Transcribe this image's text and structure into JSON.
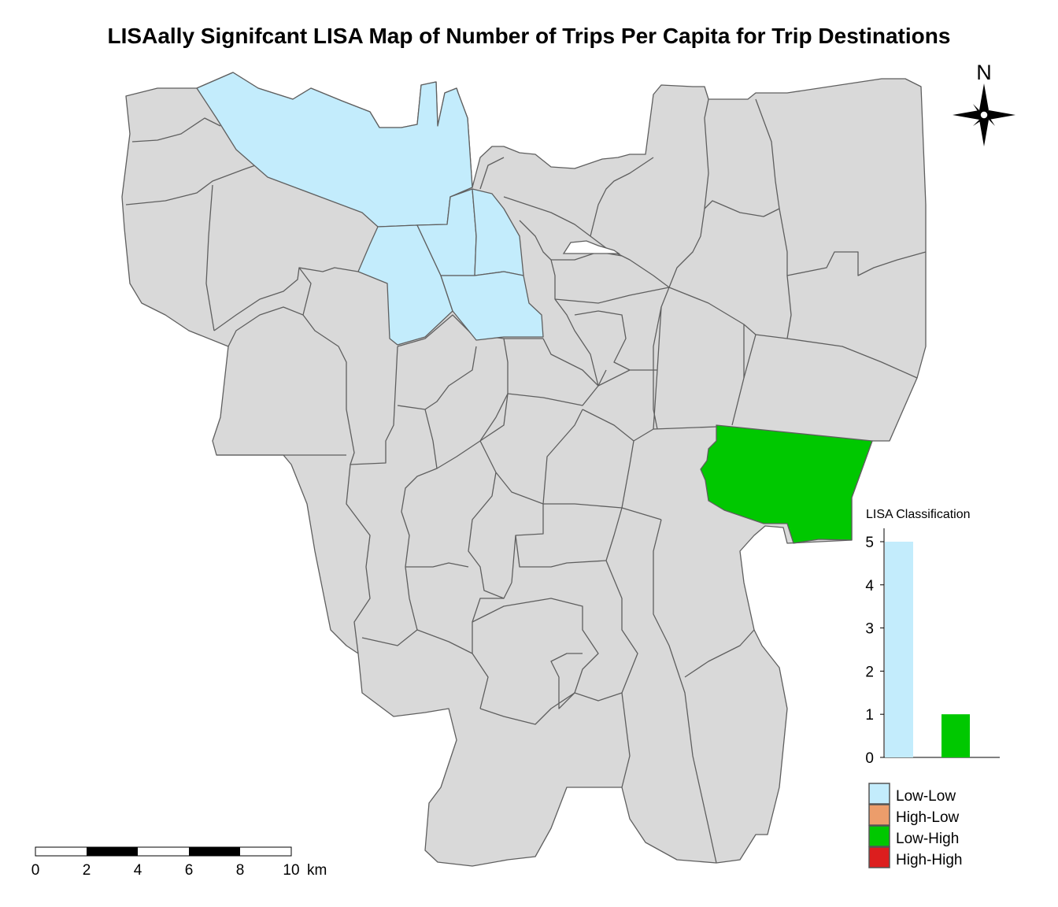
{
  "title": "LISAally Signifcant LISA Map of Number of Trips Per Capita for Trip Destinations",
  "north_arrow": {
    "label": "N",
    "icon": "compass-rose-icon"
  },
  "colors": {
    "not_significant": "#d9d9d9",
    "border": "#5f5f5f",
    "Low-Low": "#c3ecfc",
    "High-Low": "#ec9d6b",
    "Low-High": "#00c800",
    "High-High": "#dc1e1e"
  },
  "legend": {
    "items": [
      {
        "label": "Low-Low",
        "color": "#c3ecfc"
      },
      {
        "label": "High-Low",
        "color": "#ec9d6b"
      },
      {
        "label": "Low-High",
        "color": "#00c800"
      },
      {
        "label": "High-High",
        "color": "#dc1e1e"
      }
    ]
  },
  "chart_data": {
    "type": "bar",
    "title": "LISA Classification",
    "categories": [
      "Low-Low",
      "High-Low",
      "Low-High",
      "High-High"
    ],
    "values": [
      5,
      0,
      1,
      0
    ],
    "colors": [
      "#c3ecfc",
      "#ec9d6b",
      "#00c800",
      "#dc1e1e"
    ],
    "yticks": [
      "0",
      "1",
      "2",
      "3",
      "4",
      "5"
    ],
    "ylim": [
      0,
      5
    ]
  },
  "scale_bar": {
    "ticks": [
      "0",
      "2",
      "4",
      "6",
      "8",
      "10"
    ],
    "unit": "km"
  },
  "districts": [
    {
      "name": "",
      "class": "Low-Low"
    },
    {
      "name": "",
      "class": "Low-Low"
    },
    {
      "name": "",
      "class": "Low-Low"
    },
    {
      "name": "",
      "class": "Low-Low"
    },
    {
      "name": "",
      "class": "Low-Low"
    },
    {
      "name": "",
      "class": "Low-High"
    }
  ]
}
